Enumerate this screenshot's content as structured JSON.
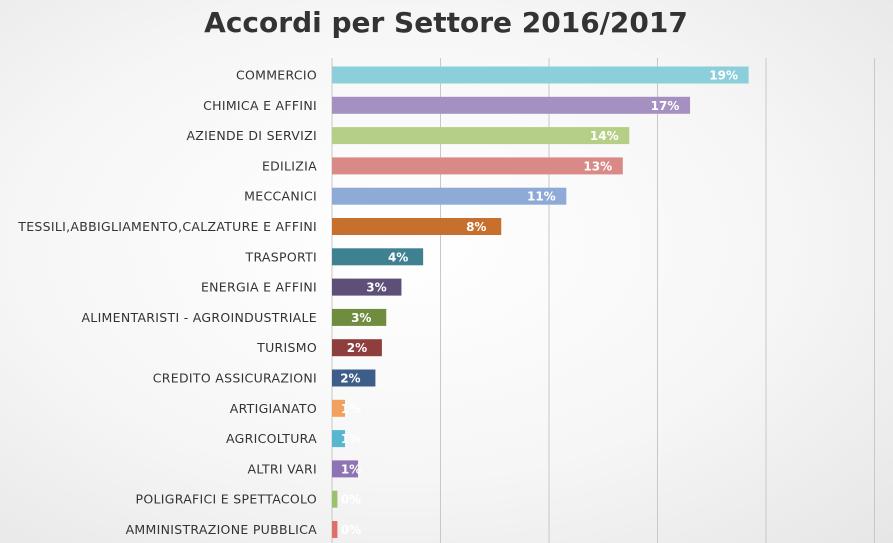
{
  "chart_data": {
    "type": "bar",
    "orientation": "horizontal",
    "title": "Accordi per Settore 2016/2017",
    "categories": [
      "COMMERCIO",
      "CHIMICA E AFFINI",
      "AZIENDE DI SERVIZI",
      "EDILIZIA",
      "MECCANICI",
      "TESSILI,ABBIGLIAMENTO,CALZATURE E AFFINI",
      "TRASPORTI",
      "ENERGIA E AFFINI",
      "ALIMENTARISTI - AGROINDUSTRIALE",
      "TURISMO",
      "CREDITO ASSICURAZIONI",
      "ARTIGIANATO",
      "AGRICOLTURA",
      "ALTRI VARI",
      "POLIGRAFICI E SPETTACOLO",
      "AMMINISTRAZIONE PUBBLICA"
    ],
    "values": [
      19.2,
      16.5,
      13.7,
      13.4,
      10.8,
      7.8,
      4.2,
      3.2,
      2.5,
      2.3,
      2.0,
      0.6,
      0.6,
      1.2,
      0.25,
      0.25
    ],
    "data_labels": [
      "19%",
      "17%",
      "14%",
      "13%",
      "11%",
      "8%",
      "4%",
      "3%",
      "3%",
      "2%",
      "2%",
      "1%",
      "1%",
      "1%",
      "0%",
      "0%"
    ],
    "colors": [
      "#8ccfdb",
      "#a491c2",
      "#b6cf86",
      "#d98a87",
      "#8eabd8",
      "#c7702d",
      "#3f8091",
      "#5d4f78",
      "#6f8c3f",
      "#8e3e3c",
      "#3e5e8a",
      "#f1a15e",
      "#58b6cf",
      "#8e74b5",
      "#9bc16f",
      "#df6f6b"
    ],
    "xlim": [
      0,
      25
    ],
    "grid": true,
    "legend": "none"
  }
}
